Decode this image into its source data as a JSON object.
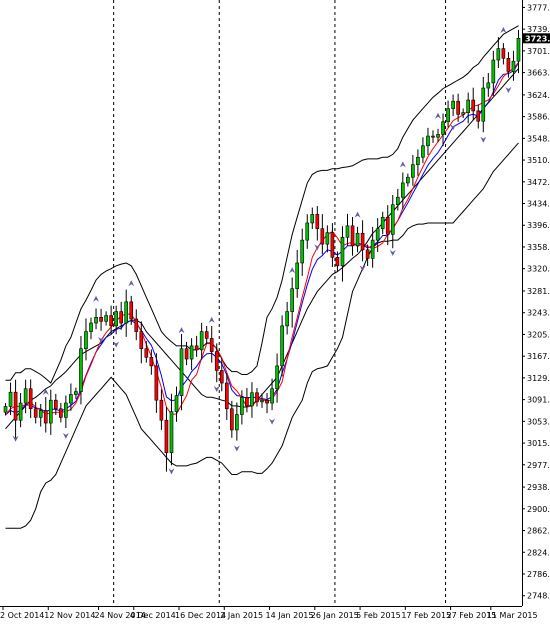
{
  "chart_data": {
    "type": "candlestick",
    "ylim": [
      2730,
      3790
    ],
    "y_ticks": [
      "3777.0",
      "3739.0",
      "3701.0",
      "3663.0",
      "3624.0",
      "3586.0",
      "3548.0",
      "3510.0",
      "3472.0",
      "3434.0",
      "3396.0",
      "3358.0",
      "3320.0",
      "3281.0",
      "3243.0",
      "3205.0",
      "3167.0",
      "3129.0",
      "3091.0",
      "3053.0",
      "3015.0",
      "2977.0",
      "2938.0",
      "2900.0",
      "2862.0",
      "2824.0",
      "2786.0",
      "2748.0"
    ],
    "x_ticks": [
      {
        "i": 0,
        "label": "2 Oct 2014"
      },
      {
        "i": 9,
        "label": "12 Nov 2014"
      },
      {
        "i": 19,
        "label": "24 Nov 2014"
      },
      {
        "i": 26,
        "label": "4 Dec 2014"
      },
      {
        "i": 35,
        "label": "16 Dec 2014"
      },
      {
        "i": 44,
        "label": "2 Jan 2015"
      },
      {
        "i": 53,
        "label": "14 Jan 2015"
      },
      {
        "i": 62,
        "label": "26 Jan 2015"
      },
      {
        "i": 71,
        "label": "5 Feb 2015"
      },
      {
        "i": 80,
        "label": "17 Feb 2015"
      },
      {
        "i": 89,
        "label": "27 Feb 2015"
      },
      {
        "i": 97,
        "label": "11 Mar 2015"
      }
    ],
    "period_separators_at": [
      22,
      43,
      66,
      88
    ],
    "last_price": "3723.0",
    "colors": {
      "bull": "#00c000",
      "bear": "#ff0000",
      "ma_fast": "#ff0000",
      "ma_slow": "#0000ff",
      "bands": "#000000",
      "fractal": "#6060a0",
      "separator": "#000000",
      "badge": "#000000"
    },
    "series": [
      {
        "name": "close",
        "values": [
          3079,
          3104,
          3055,
          3085,
          3110,
          3075,
          3060,
          3072,
          3050,
          3090,
          3075,
          3060,
          3085,
          3100,
          3105,
          3180,
          3210,
          3225,
          3235,
          3228,
          3238,
          3220,
          3245,
          3225,
          3262,
          3232,
          3210,
          3180,
          3165,
          3150,
          3090,
          3055,
          2998,
          3070,
          3098,
          3180,
          3162,
          3185,
          3178,
          3210,
          3198,
          3175,
          3142,
          3120,
          3075,
          3038,
          3065,
          3095,
          3080,
          3103,
          3087,
          3090,
          3085,
          3110,
          3150,
          3220,
          3245,
          3285,
          3330,
          3370,
          3400,
          3415,
          3390,
          3363,
          3383,
          3340,
          3325,
          3375,
          3395,
          3360,
          3382,
          3353,
          3338,
          3370,
          3390,
          3410,
          3380,
          3432,
          3445,
          3470,
          3480,
          3502,
          3515,
          3535,
          3552,
          3550,
          3555,
          3577,
          3600,
          3613,
          3590,
          3593,
          3615,
          3596,
          3578,
          3636,
          3645,
          3685,
          3705,
          3688,
          3665,
          3683,
          3723
        ]
      },
      {
        "name": "sma_fast",
        "values": [
          3064,
          3075,
          3080,
          3078,
          3083,
          3086,
          3078,
          3072,
          3066,
          3067,
          3069,
          3069,
          3070,
          3074,
          3085,
          3105,
          3132,
          3152,
          3174,
          3195,
          3208,
          3218,
          3229,
          3237,
          3241,
          3240,
          3227,
          3210,
          3188,
          3166,
          3140,
          3112,
          3078,
          3065,
          3066,
          3082,
          3098,
          3125,
          3135,
          3164,
          3189,
          3189,
          3180,
          3164,
          3138,
          3115,
          3106,
          3094,
          3078,
          3080,
          3089,
          3093,
          3087,
          3092,
          3105,
          3122,
          3162,
          3201,
          3234,
          3270,
          3304,
          3340,
          3357,
          3369,
          3380,
          3385,
          3374,
          3360,
          3364,
          3366,
          3359,
          3364,
          3359,
          3355,
          3359,
          3365,
          3380,
          3390,
          3404,
          3426,
          3441,
          3460,
          3480,
          3498,
          3516,
          3530,
          3542,
          3554,
          3566,
          3579,
          3584,
          3589,
          3596,
          3604,
          3606,
          3611,
          3615,
          3626,
          3640,
          3656,
          3664,
          3670,
          3681
        ]
      },
      {
        "name": "ema_slow",
        "values": [
          3064,
          3072,
          3068,
          3072,
          3082,
          3081,
          3076,
          3075,
          3069,
          3074,
          3074,
          3071,
          3075,
          3081,
          3088,
          3110,
          3134,
          3155,
          3174,
          3187,
          3200,
          3205,
          3214,
          3216,
          3227,
          3229,
          3224,
          3212,
          3198,
          3186,
          3163,
          3133,
          3096,
          3089,
          3091,
          3113,
          3125,
          3140,
          3149,
          3163,
          3171,
          3172,
          3165,
          3154,
          3134,
          3108,
          3098,
          3097,
          3093,
          3096,
          3094,
          3093,
          3091,
          3096,
          3109,
          3137,
          3162,
          3192,
          3226,
          3260,
          3292,
          3319,
          3336,
          3343,
          3353,
          3350,
          3344,
          3351,
          3360,
          3360,
          3365,
          3362,
          3356,
          3360,
          3367,
          3378,
          3378,
          3391,
          3404,
          3420,
          3435,
          3452,
          3468,
          3485,
          3501,
          3513,
          3523,
          3537,
          3553,
          3568,
          3573,
          3578,
          3588,
          3590,
          3587,
          3600,
          3611,
          3629,
          3650,
          3660,
          3661,
          3666,
          3680
        ]
      },
      {
        "name": "upper_band",
        "values": [
          3125,
          3125,
          3138,
          3138,
          3145,
          3145,
          3140,
          3135,
          3128,
          3120,
          3140,
          3160,
          3185,
          3200,
          3225,
          3250,
          3265,
          3282,
          3300,
          3310,
          3316,
          3320,
          3325,
          3328,
          3330,
          3325,
          3310,
          3290,
          3270,
          3250,
          3230,
          3210,
          3200,
          3192,
          3185,
          3185,
          3185,
          3178,
          3178,
          3182,
          3190,
          3190,
          3180,
          3162,
          3148,
          3140,
          3140,
          3135,
          3135,
          3140,
          3150,
          3190,
          3235,
          3250,
          3270,
          3300,
          3340,
          3380,
          3410,
          3440,
          3470,
          3485,
          3490,
          3492,
          3492,
          3495,
          3495,
          3497,
          3498,
          3500,
          3505,
          3510,
          3512,
          3512,
          3512,
          3515,
          3515,
          3520,
          3530,
          3550,
          3565,
          3580,
          3590,
          3600,
          3610,
          3620,
          3627,
          3635,
          3640,
          3645,
          3650,
          3655,
          3662,
          3672,
          3678,
          3690,
          3700,
          3710,
          3720,
          3730,
          3735,
          3740,
          3745
        ]
      },
      {
        "name": "middle_band",
        "values": [
          3040,
          3050,
          3060,
          3070,
          3080,
          3090,
          3095,
          3102,
          3110,
          3115,
          3125,
          3132,
          3140,
          3150,
          3160,
          3170,
          3175,
          3180,
          3185,
          3190,
          3200,
          3210,
          3215,
          3220,
          3225,
          3230,
          3230,
          3225,
          3210,
          3200,
          3190,
          3180,
          3170,
          3160,
          3150,
          3140,
          3130,
          3120,
          3110,
          3100,
          3095,
          3095,
          3093,
          3090,
          3088,
          3080,
          3080,
          3078,
          3078,
          3082,
          3090,
          3100,
          3110,
          3120,
          3130,
          3150,
          3170,
          3190,
          3210,
          3230,
          3250,
          3265,
          3280,
          3290,
          3300,
          3310,
          3315,
          3322,
          3330,
          3338,
          3345,
          3355,
          3368,
          3382,
          3390,
          3400,
          3410,
          3420,
          3430,
          3440,
          3450,
          3460,
          3470,
          3480,
          3490,
          3500,
          3510,
          3520,
          3530,
          3540,
          3550,
          3560,
          3570,
          3580,
          3590,
          3600,
          3610,
          3620,
          3630,
          3640,
          3650,
          3660,
          3670
        ]
      },
      {
        "name": "lower_band",
        "values": [
          2866,
          2866,
          2866,
          2866,
          2870,
          2880,
          2900,
          2930,
          2945,
          2950,
          2960,
          2980,
          3000,
          3020,
          3040,
          3060,
          3080,
          3090,
          3100,
          3110,
          3120,
          3130,
          3120,
          3110,
          3100,
          3080,
          3060,
          3040,
          3030,
          3020,
          3010,
          3000,
          2990,
          2980,
          2975,
          2975,
          2975,
          2978,
          2980,
          2985,
          2990,
          2990,
          2985,
          2980,
          2970,
          2960,
          2960,
          2965,
          2965,
          2965,
          2962,
          2962,
          2970,
          2980,
          2995,
          3010,
          3035,
          3060,
          3075,
          3090,
          3120,
          3140,
          3145,
          3147,
          3150,
          3165,
          3180,
          3200,
          3240,
          3280,
          3300,
          3320,
          3340,
          3357,
          3365,
          3368,
          3368,
          3370,
          3370,
          3378,
          3390,
          3395,
          3398,
          3398,
          3400,
          3400,
          3400,
          3400,
          3400,
          3400,
          3410,
          3420,
          3430,
          3440,
          3450,
          3460,
          3475,
          3490,
          3500,
          3510,
          3520,
          3530,
          3540
        ]
      }
    ],
    "fractals_up": [
      8,
      18,
      25,
      35,
      41,
      57,
      70,
      79,
      86,
      99
    ],
    "fractals_down": [
      2,
      12,
      19,
      22,
      33,
      42,
      46,
      53,
      62,
      71,
      77,
      89,
      95,
      100
    ]
  }
}
